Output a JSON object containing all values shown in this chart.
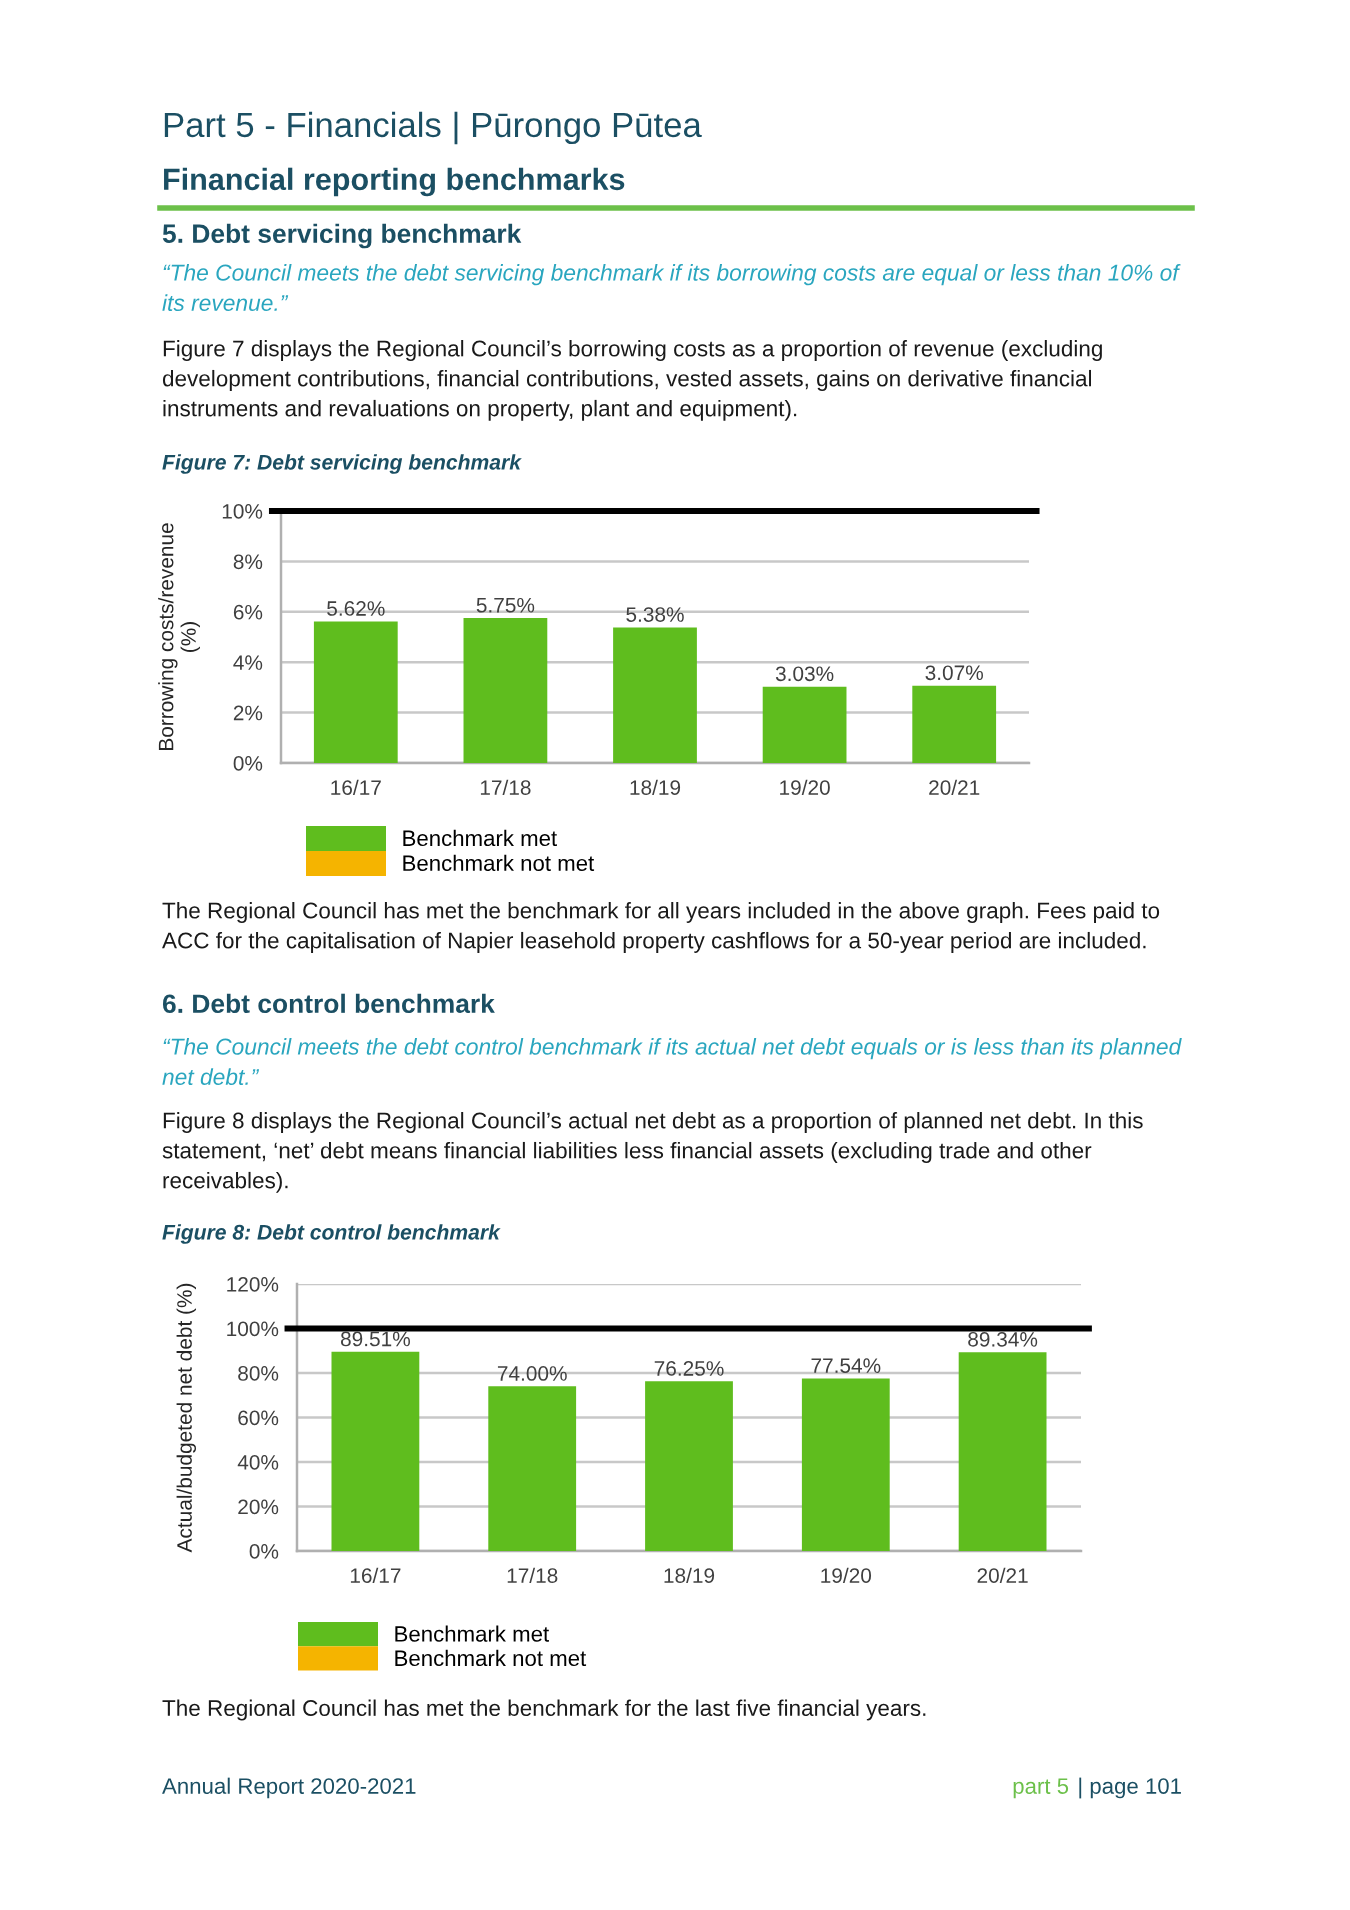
{
  "chart_data": [
    {
      "type": "bar",
      "title": "Figure 7: Debt servicing benchmark",
      "ylabel": "Borrowing costs/revenue\n(%)",
      "categories": [
        "16/17",
        "17/18",
        "18/19",
        "19/20",
        "20/21"
      ],
      "series": [
        {
          "name": "Benchmark met",
          "color": "#5fbd1e",
          "values": [
            5.62,
            5.75,
            5.38,
            3.03,
            3.07
          ],
          "value_labels": [
            "5.62%",
            "5.75%",
            "5.38%",
            "3.03%",
            "3.07%"
          ]
        },
        {
          "name": "Benchmark not met",
          "color": "#f5b400",
          "values": [
            null,
            null,
            null,
            null,
            null
          ]
        }
      ],
      "stacked": true,
      "ylim": [
        0,
        10
      ],
      "yticks": [
        {
          "value": 0,
          "label": "0%"
        },
        {
          "value": 2,
          "label": "2%"
        },
        {
          "value": 4,
          "label": "4%"
        },
        {
          "value": 6,
          "label": "6%"
        },
        {
          "value": 8,
          "label": "8%"
        },
        {
          "value": 10,
          "label": "10%"
        }
      ],
      "grid": "y",
      "legend": "bottom",
      "ref_lines": [
        {
          "axis": "y",
          "value": 10,
          "color": "#000000"
        }
      ],
      "annotations": [
        "Part 5 - Financials | Pūrongo Pūtea",
        "Financial reporting benchmarks",
        "5. Debt servicing benchmark",
        "“The Council meets the debt servicing benchmark if its borrowing costs are equal or less than 10% of\nits revenue.”",
        "Figure 7 displays the Regional Council’s borrowing costs as a proportion of revenue (excluding\ndevelopment contributions, financial contributions, vested assets, gains on derivative financial\ninstruments and revaluations on property, plant and equipment).",
        "The Regional Council has met the benchmark for all years included in the above graph. Fees paid to\nACC for the capitalisation of Napier leasehold property cashflows for a 50-year period are included."
      ]
    },
    {
      "type": "bar",
      "title": "Figure 8: Debt control benchmark",
      "ylabel": "Actual/budgeted net debt (%)",
      "categories": [
        "16/17",
        "17/18",
        "18/19",
        "19/20",
        "20/21"
      ],
      "series": [
        {
          "name": "Benchmark met",
          "color": "#5fbd1e",
          "values": [
            89.51,
            74.0,
            76.25,
            77.54,
            89.34
          ],
          "value_labels": [
            "89.51%",
            "74.00%",
            "76.25%",
            "77.54%",
            "89.34%"
          ]
        },
        {
          "name": "Benchmark not met",
          "color": "#f5b400",
          "values": [
            null,
            null,
            null,
            null,
            null
          ]
        }
      ],
      "stacked": true,
      "ylim": [
        0,
        120
      ],
      "yticks": [
        {
          "value": 0,
          "label": "0%"
        },
        {
          "value": 20,
          "label": "20%"
        },
        {
          "value": 40,
          "label": "40%"
        },
        {
          "value": 60,
          "label": "60%"
        },
        {
          "value": 80,
          "label": "80%"
        },
        {
          "value": 100,
          "label": "100%"
        },
        {
          "value": 120,
          "label": "120%"
        }
      ],
      "grid": "y",
      "legend": "bottom",
      "ref_lines": [
        {
          "axis": "y",
          "value": 100,
          "color": "#000000"
        }
      ],
      "annotations": [
        "6. Debt control benchmark",
        "“The Council meets the debt control benchmark if its actual net debt equals or is less than its planned\nnet debt.”",
        "Figure 8 displays the Regional Council’s actual net debt as a proportion of planned net debt. In this\nstatement, ‘net’ debt means financial liabilities less financial assets (excluding trade and other\nreceivables).",
        "The Regional Council has met the benchmark for the last five financial years.",
        "Annual Report 2020-2021",
        "part 5",
        "| page 101"
      ]
    }
  ]
}
